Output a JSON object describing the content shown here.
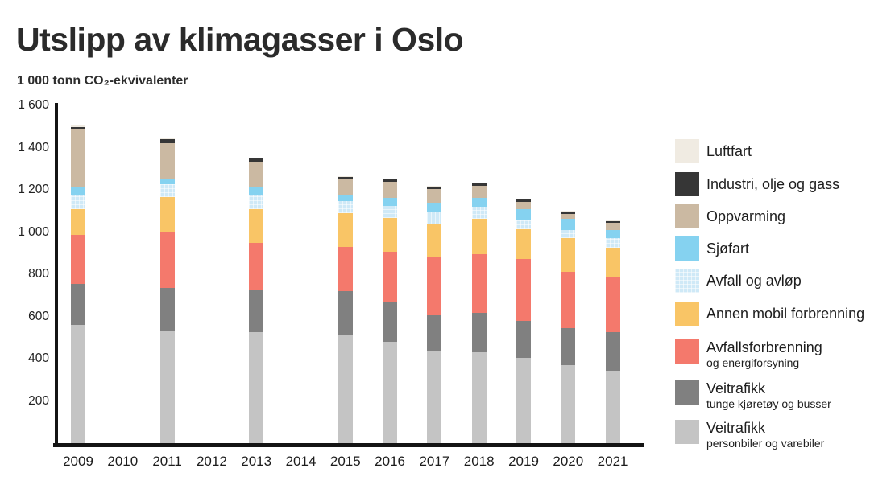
{
  "page": {
    "background": "#ffffff"
  },
  "chart_data": {
    "type": "bar",
    "stacked": true,
    "title": "Utslipp av klimagasser i Oslo",
    "unit_label": "1 000 tonn CO₂-ekvivalenter",
    "ylim": [
      0,
      1600
    ],
    "grid": false,
    "legend_position": "right",
    "axis_color": "#141414",
    "yticks": [
      {
        "value": 1600,
        "label": "1 600"
      },
      {
        "value": 1400,
        "label": "1 400"
      },
      {
        "value": 1200,
        "label": "1 200"
      },
      {
        "value": 1000,
        "label": "1 000"
      },
      {
        "value": 800,
        "label": "800"
      },
      {
        "value": 600,
        "label": "600"
      },
      {
        "value": 400,
        "label": "400"
      },
      {
        "value": 200,
        "label": "200"
      }
    ],
    "categories": [
      "2009",
      "2010",
      "2011",
      "2012",
      "2013",
      "2014",
      "2015",
      "2016",
      "2017",
      "2018",
      "2019",
      "2020",
      "2021"
    ],
    "series": [
      {
        "name": "Veitrafikk personbiler og varebiler",
        "color": "#c4c4c4",
        "values": [
          560,
          null,
          535,
          null,
          525,
          null,
          515,
          480,
          435,
          430,
          403,
          368,
          343
        ]
      },
      {
        "name": "Veitrafikk tunge kjøretøy og busser",
        "color": "#808080",
        "values": [
          195,
          null,
          200,
          null,
          200,
          null,
          205,
          190,
          170,
          187,
          177,
          178,
          184
        ]
      },
      {
        "name": "Avfallsforbrenning og energiforsyning",
        "color": "#f4796c",
        "values": [
          230,
          null,
          265,
          null,
          225,
          null,
          210,
          235,
          275,
          278,
          291,
          266,
          263
        ]
      },
      {
        "name": "Annen mobil forbrenning",
        "color": "#f9c566",
        "values": [
          125,
          null,
          165,
          null,
          160,
          null,
          158,
          160,
          155,
          167,
          144,
          158,
          136
        ]
      },
      {
        "name": "Avfall og avløp",
        "color": "#cfe9f7",
        "pattern": "grid",
        "values": [
          65,
          null,
          60,
          null,
          65,
          null,
          57,
          60,
          58,
          58,
          44,
          38,
          44
        ]
      },
      {
        "name": "Sjøfart",
        "color": "#85d2f0",
        "values": [
          35,
          null,
          30,
          null,
          35,
          null,
          32,
          38,
          43,
          43,
          51,
          53,
          38
        ]
      },
      {
        "name": "Oppvarming",
        "color": "#cbb9a2",
        "values": [
          275,
          null,
          165,
          null,
          120,
          null,
          75,
          74,
          67,
          55,
          31,
          23,
          35
        ]
      },
      {
        "name": "Industri, olje og gass",
        "color": "#363636",
        "values": [
          13,
          null,
          20,
          null,
          18,
          null,
          10,
          12,
          11,
          12,
          13,
          13,
          9
        ]
      },
      {
        "name": "Luftfart",
        "color": "#f0ebe2",
        "values": [
          5,
          null,
          5,
          null,
          5,
          null,
          4,
          4,
          4,
          4,
          4,
          4,
          4
        ]
      }
    ],
    "legend": [
      {
        "label": "Luftfart",
        "color": "#f0ebe2"
      },
      {
        "label": "Industri, olje og gass",
        "color": "#363636"
      },
      {
        "label": "Oppvarming",
        "color": "#cbb9a2"
      },
      {
        "label": "Sjøfart",
        "color": "#85d2f0"
      },
      {
        "label": "Avfall og avløp",
        "color": "#cfe9f7",
        "pattern": "grid"
      },
      {
        "label": "Annen mobil forbrenning",
        "color": "#f9c566"
      },
      {
        "label": "Avfallsforbrenning",
        "sublabel": "og energiforsyning",
        "color": "#f4796c"
      },
      {
        "label": "Veitrafikk",
        "sublabel": "tunge kjøretøy og busser",
        "color": "#808080"
      },
      {
        "label": "Veitrafikk",
        "sublabel": "personbiler og varebiler",
        "color": "#c4c4c4"
      }
    ]
  }
}
